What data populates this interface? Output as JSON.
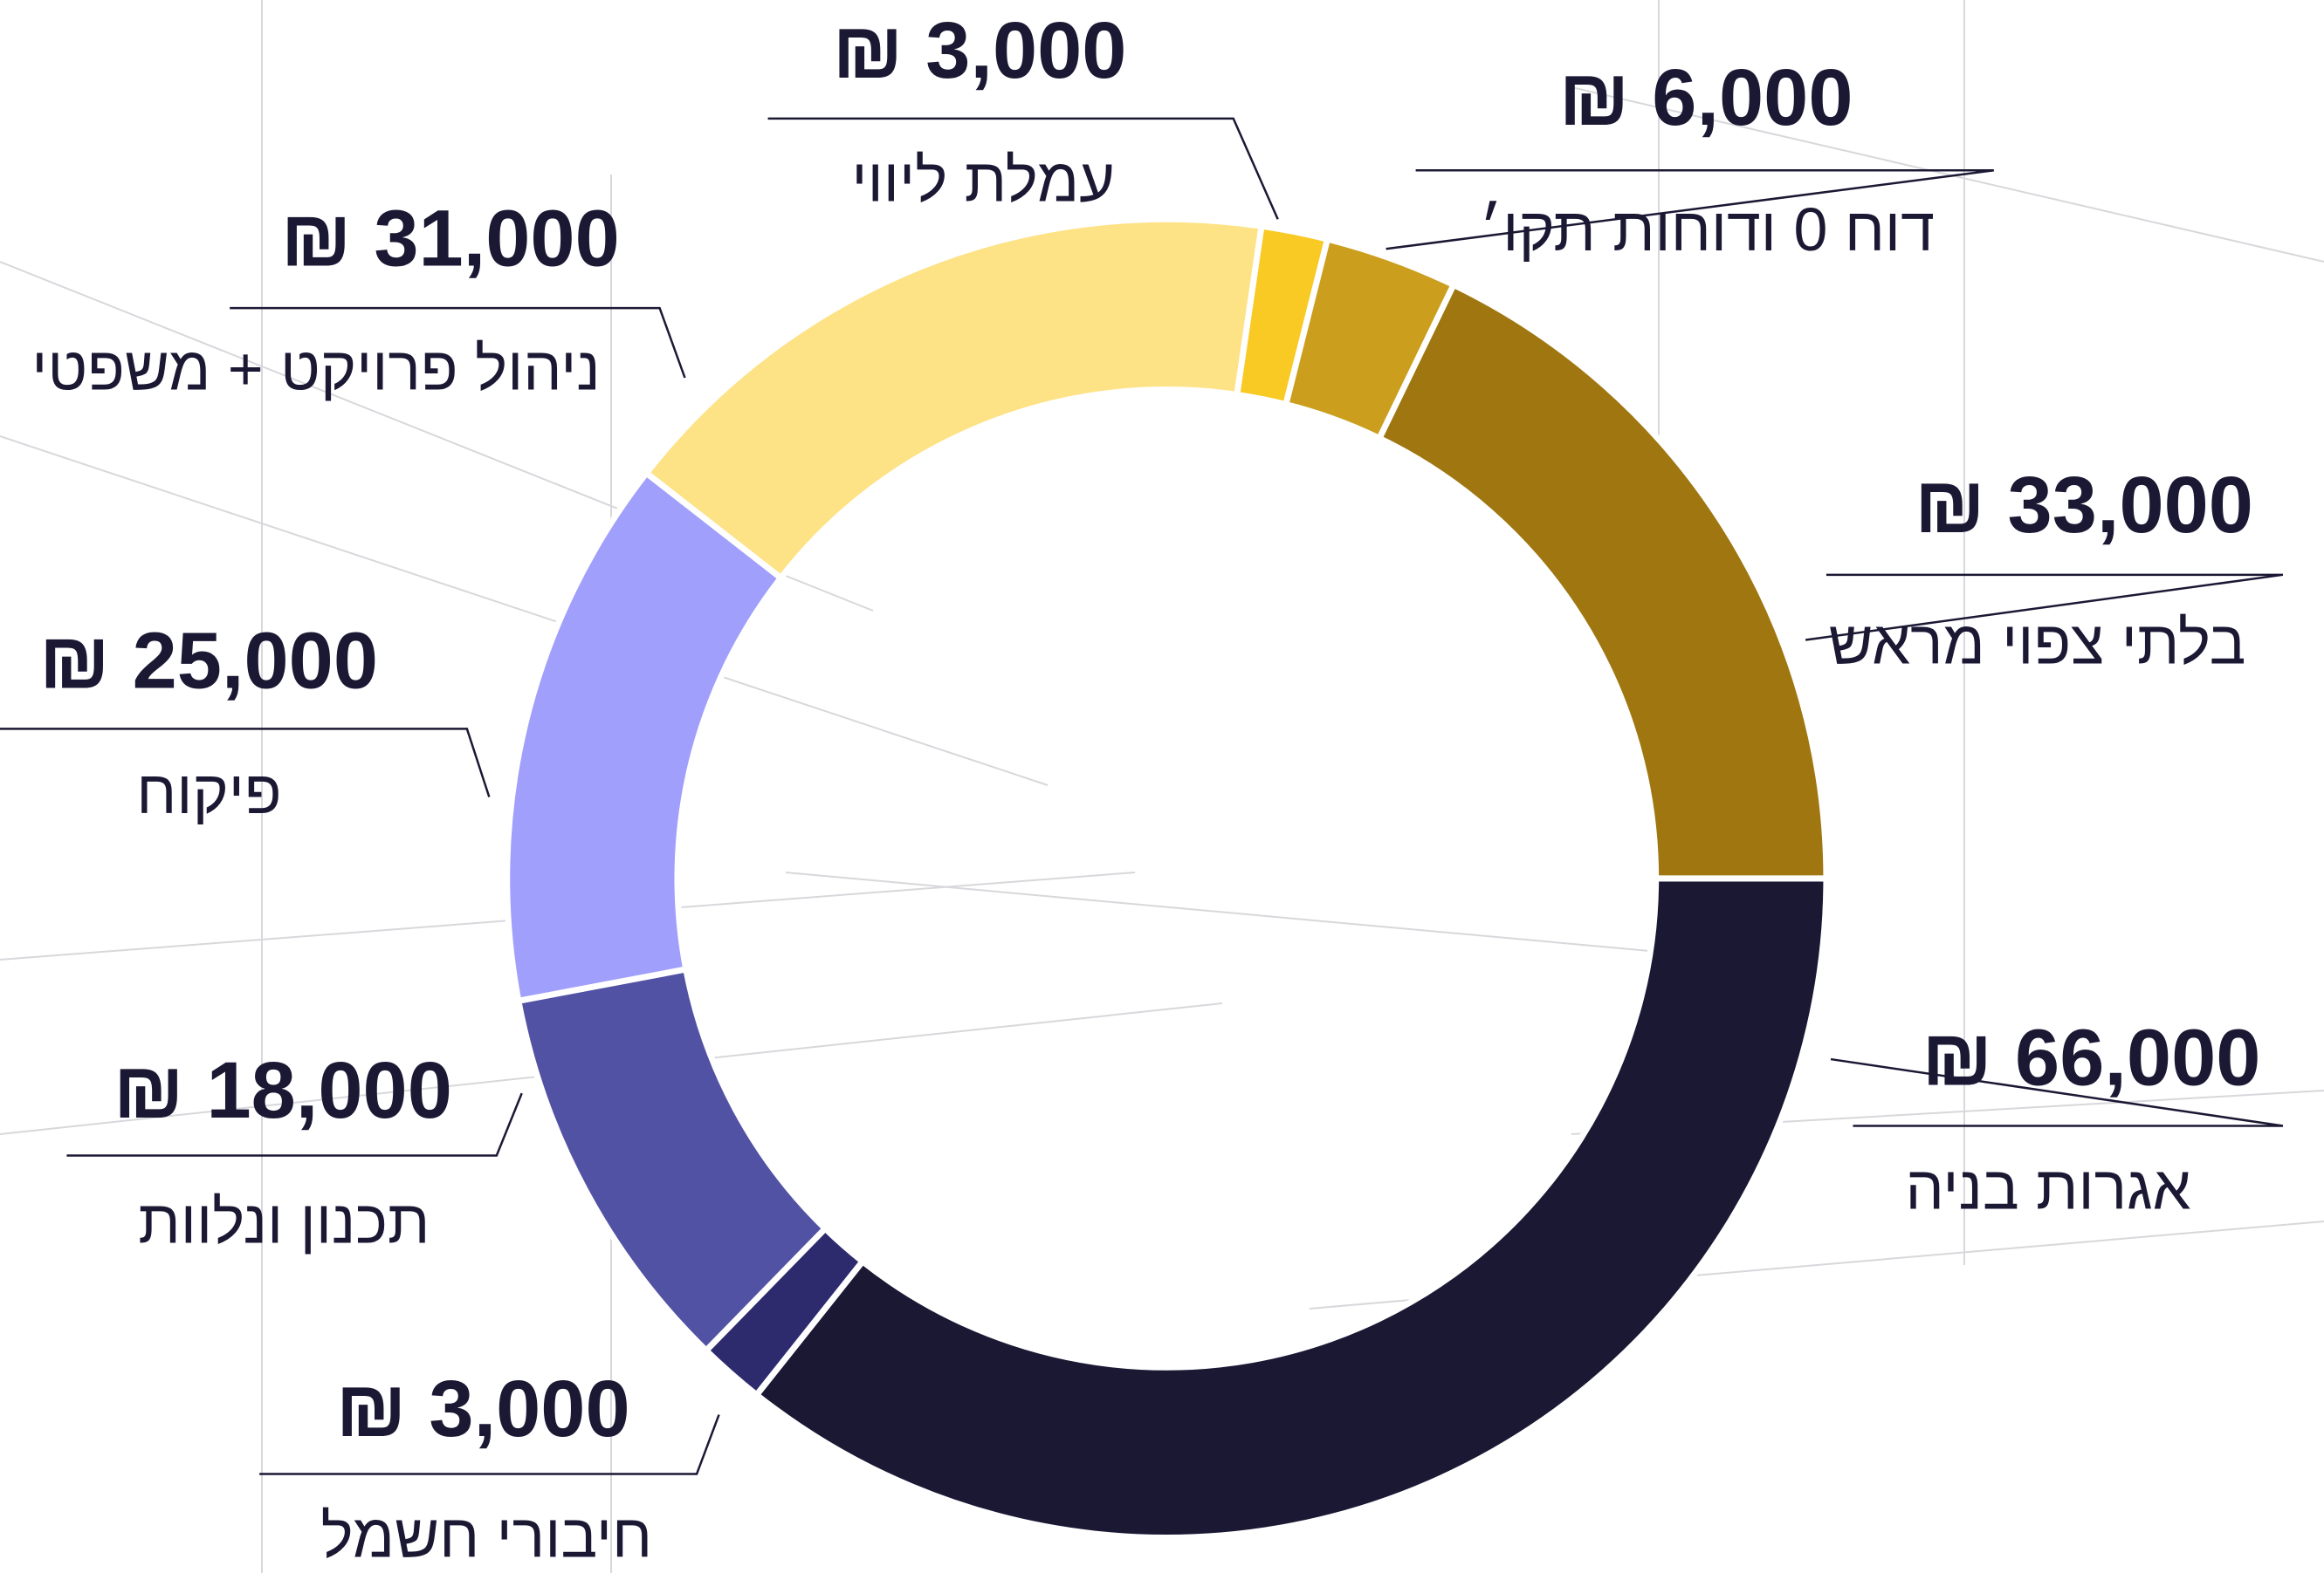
{
  "chart_data": {
    "type": "donut",
    "categories": [
      "אגרות בניה",
      "חיבורי חשמל",
      "תכנון ונלוות",
      "פיקוח",
      "ניהול פרויקט + משפטי",
      "עמלת ליווי",
      "דוח 0 ודוחות תקו׳",
      "בלתי צפוי מראש"
    ],
    "values": [
      66000,
      3000,
      18000,
      25000,
      31000,
      3000,
      6000,
      33000
    ],
    "value_labels": [
      "₪ 66,000",
      "₪ 3,000",
      "₪ 18,000",
      "₪ 25,000",
      "₪ 31,000",
      "₪ 3,000",
      "₪ 6,000",
      "₪ 33,000"
    ],
    "colors": [
      "#1b1834",
      "#2d2b6e",
      "#5252a4",
      "#a0a0fc",
      "#fde286",
      "#f9c924",
      "#cc9e1e",
      "#9f7610"
    ]
  }
}
